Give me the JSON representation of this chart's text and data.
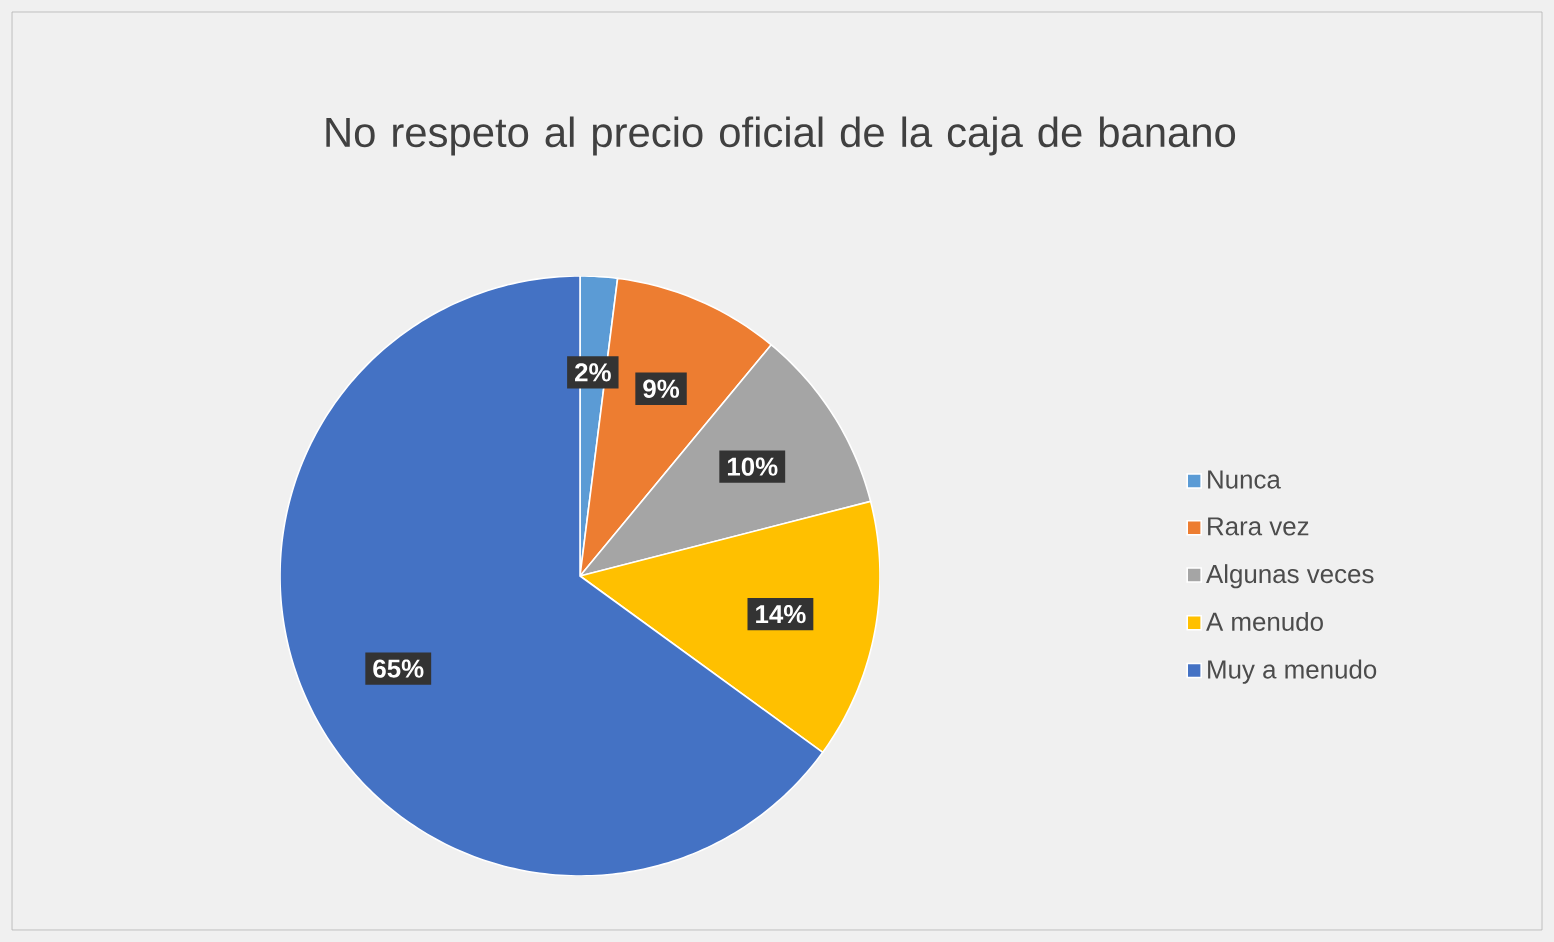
{
  "chart_data": {
    "type": "pie",
    "title": "No respeto al precio oficial de la caja de banano",
    "categories": [
      "Nunca",
      "Rara vez",
      "Algunas veces",
      "A menudo",
      "Muy a menudo"
    ],
    "values": [
      2,
      9,
      10,
      14,
      65
    ],
    "value_labels": [
      "2%",
      "9%",
      "10%",
      "14%",
      "65%"
    ],
    "colors": [
      "#5b9bd5",
      "#ed7d31",
      "#a5a5a5",
      "#ffc000",
      "#4472c4"
    ],
    "legend": "right"
  }
}
